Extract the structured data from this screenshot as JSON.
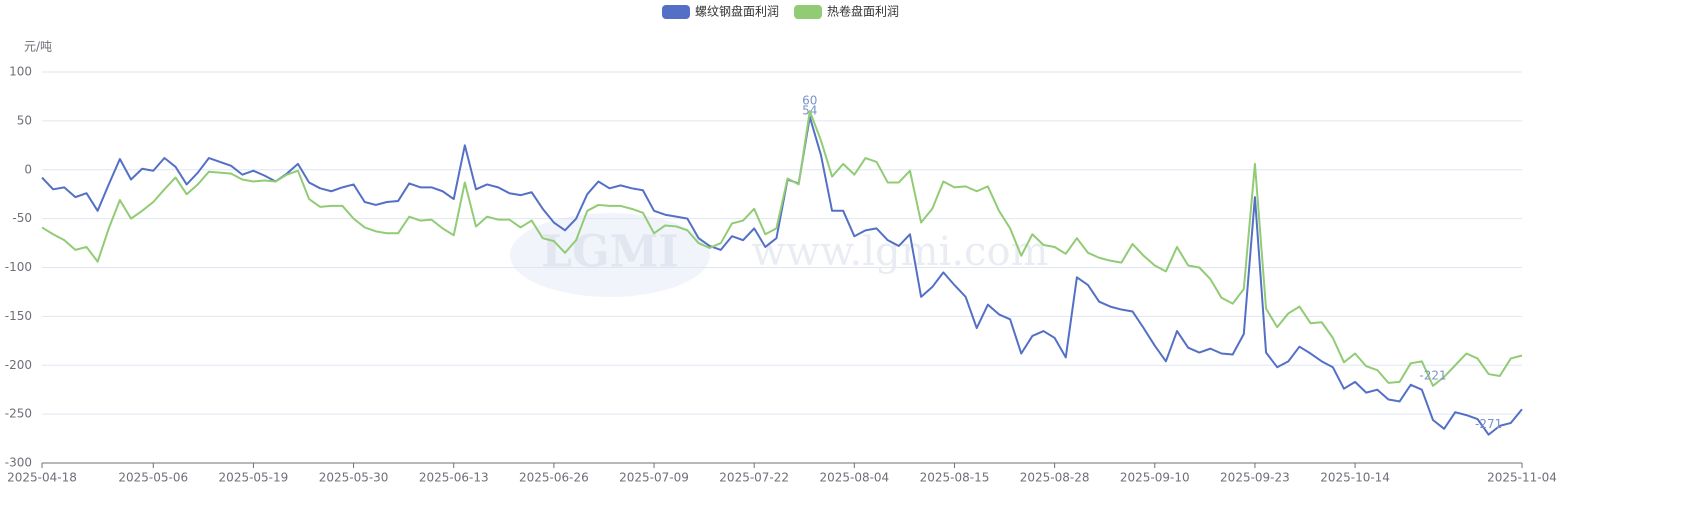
{
  "chart_data": {
    "type": "line",
    "y_unit": "元/吨",
    "watermark": "www.lgmi.com",
    "logo": "LGMI",
    "legend": "top",
    "grid": true,
    "data_labels": "max-min",
    "ylim": [
      -300,
      100
    ],
    "yticks": [
      -300,
      -250,
      -200,
      -150,
      -100,
      -50,
      0,
      50,
      100
    ],
    "categories": [
      "2025-04-18",
      null,
      null,
      null,
      null,
      null,
      null,
      null,
      null,
      null,
      "2025-05-06",
      null,
      null,
      null,
      null,
      null,
      null,
      null,
      null,
      "2025-05-19",
      null,
      null,
      null,
      null,
      null,
      null,
      null,
      null,
      "2025-05-30",
      null,
      null,
      null,
      null,
      null,
      null,
      null,
      null,
      "2025-06-13",
      null,
      null,
      null,
      null,
      null,
      null,
      null,
      null,
      "2025-06-26",
      null,
      null,
      null,
      null,
      null,
      null,
      null,
      null,
      "2025-07-09",
      null,
      null,
      null,
      null,
      null,
      null,
      null,
      null,
      "2025-07-22",
      null,
      null,
      null,
      null,
      null,
      null,
      null,
      null,
      "2025-08-04",
      null,
      null,
      null,
      null,
      null,
      null,
      null,
      null,
      "2025-08-15",
      null,
      null,
      null,
      null,
      null,
      null,
      null,
      null,
      "2025-08-28",
      null,
      null,
      null,
      null,
      null,
      null,
      null,
      null,
      "2025-09-10",
      null,
      null,
      null,
      null,
      null,
      null,
      null,
      null,
      "2025-09-23",
      null,
      null,
      null,
      null,
      null,
      null,
      null,
      null,
      "2025-10-14",
      null,
      null,
      null,
      null,
      null,
      null,
      null,
      null,
      null,
      null,
      null,
      null,
      null,
      null,
      "2025-11-04"
    ],
    "series": [
      {
        "name": "螺纹钢盘面利润",
        "color": "#5470c6",
        "values": [
          -8,
          -20,
          -18,
          -28,
          -24,
          -42,
          -15,
          11,
          -10,
          1,
          -1,
          12,
          3,
          -15,
          -3,
          12,
          8,
          4,
          -5,
          -1,
          -6,
          -12,
          -4,
          6,
          -13,
          -19,
          -22,
          -18,
          -15,
          -33,
          -36,
          -33,
          -32,
          -14,
          -18,
          -18,
          -22,
          -30,
          25,
          -20,
          -15,
          -18,
          -24,
          -26,
          -23,
          -40,
          -54,
          -62,
          -50,
          -25,
          -12,
          -19,
          -16,
          -19,
          -21,
          -42,
          -46,
          -48,
          -50,
          -70,
          -78,
          -82,
          -68,
          -72,
          -60,
          -79,
          -70,
          -10,
          -14,
          54,
          15,
          -42,
          -42,
          -68,
          -62,
          -60,
          -72,
          -78,
          -66,
          -130,
          -120,
          -105,
          -118,
          -130,
          -162,
          -138,
          -148,
          -153,
          -188,
          -170,
          -165,
          -172,
          -192,
          -110,
          -118,
          -135,
          -140,
          -143,
          -145,
          -162,
          -180,
          -196,
          -165,
          -182,
          -187,
          -183,
          -188,
          -189,
          -168,
          -28,
          -187,
          -202,
          -196,
          -181,
          -188,
          -196,
          -202,
          -224,
          -217,
          -228,
          -225,
          -235,
          -237,
          -220,
          -225,
          -256,
          -265,
          -248,
          -251,
          -255,
          -271,
          -262,
          -259,
          -245
        ]
      },
      {
        "name": "热卷盘面利润",
        "color": "#91cc75",
        "values": [
          -59,
          -66,
          -72,
          -82,
          -79,
          -94,
          -60,
          -31,
          -50,
          -42,
          -33,
          -20,
          -8,
          -25,
          -15,
          -2,
          -3,
          -4,
          -10,
          -12,
          -11,
          -12,
          -5,
          -1,
          -30,
          -38,
          -37,
          -37,
          -50,
          -59,
          -63,
          -65,
          -65,
          -48,
          -52,
          -51,
          -60,
          -67,
          -13,
          -58,
          -48,
          -51,
          -51,
          -59,
          -52,
          -70,
          -73,
          -85,
          -72,
          -42,
          -36,
          -37,
          -37,
          -40,
          -44,
          -65,
          -57,
          -58,
          -62,
          -75,
          -80,
          -75,
          -55,
          -52,
          -40,
          -66,
          -60,
          -9,
          -15,
          60,
          30,
          -7,
          6,
          -5,
          12,
          8,
          -13,
          -13,
          -1,
          -54,
          -40,
          -12,
          -18,
          -17,
          -22,
          -17,
          -42,
          -60,
          -88,
          -66,
          -77,
          -79,
          -86,
          -70,
          -85,
          -90,
          -93,
          -95,
          -76,
          -88,
          -98,
          -104,
          -79,
          -98,
          -100,
          -112,
          -131,
          -137,
          -122,
          6,
          -142,
          -161,
          -147,
          -140,
          -157,
          -156,
          -172,
          -197,
          -188,
          -201,
          -205,
          -218,
          -217,
          -198,
          -196,
          -221,
          -212,
          -200,
          -188,
          -193,
          -209,
          -211,
          -193,
          -190
        ]
      }
    ]
  }
}
